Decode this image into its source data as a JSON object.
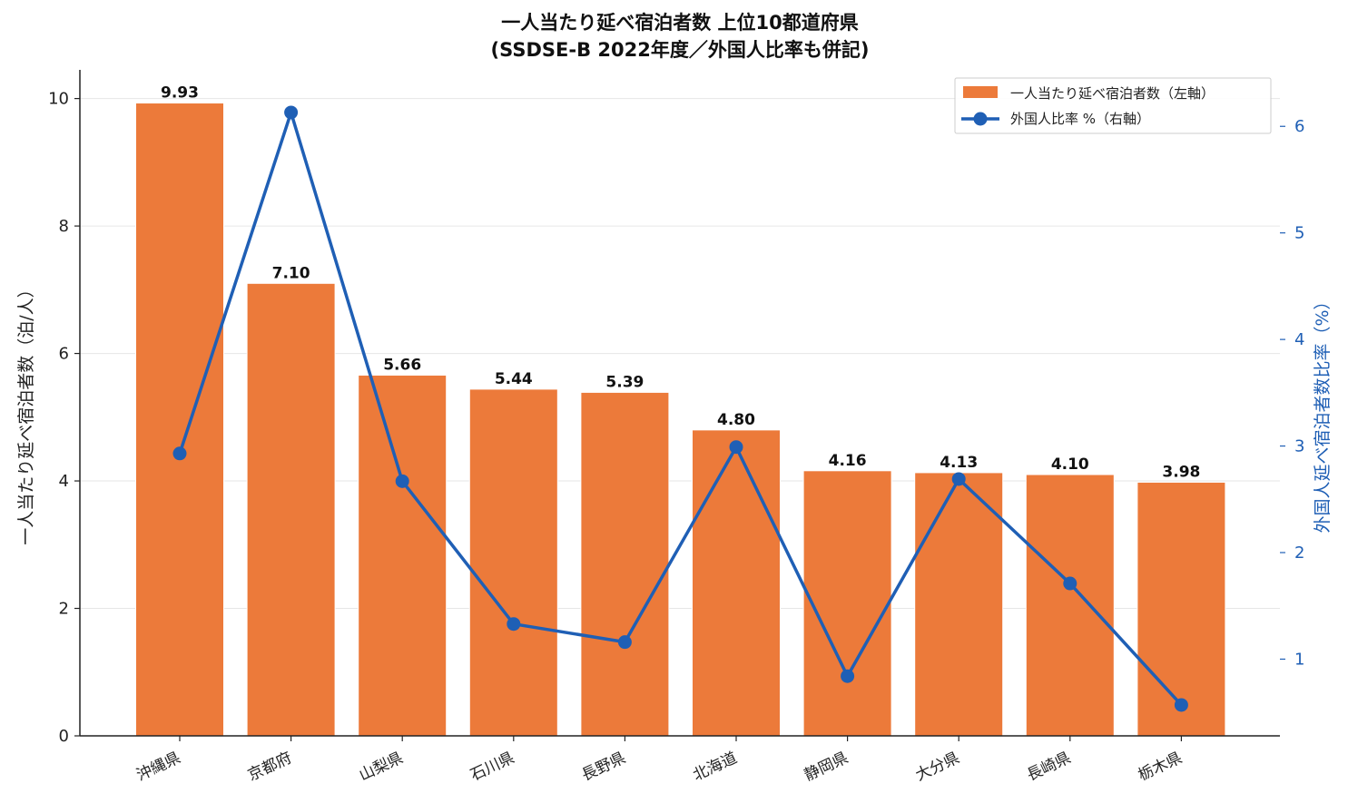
{
  "chart_data": {
    "type": "bar",
    "title": "一人当たり延べ宿泊者数 上位10都道府県",
    "subtitle": "(SSDSE-B 2022年度／外国人比率も併記)",
    "categories": [
      "沖縄県",
      "京都府",
      "山梨県",
      "石川県",
      "長野県",
      "北海道",
      "静岡県",
      "大分県",
      "長崎県",
      "栃木県"
    ],
    "series": [
      {
        "name": "一人当たり延べ宿泊者数（左軸）",
        "axis": "left",
        "type": "bar",
        "color": "#ec7a3a",
        "values": [
          9.93,
          7.1,
          5.66,
          5.44,
          5.39,
          4.8,
          4.16,
          4.13,
          4.1,
          3.98
        ],
        "labels": [
          "9.93",
          "7.10",
          "5.66",
          "5.44",
          "5.39",
          "4.80",
          "4.16",
          "4.13",
          "4.10",
          "3.98"
        ]
      },
      {
        "name": "外国人比率 %（右軸）",
        "axis": "right",
        "type": "line",
        "color": "#1f5fb5",
        "values": [
          2.93,
          6.13,
          2.67,
          1.33,
          1.16,
          2.99,
          0.84,
          2.69,
          1.71,
          0.57
        ]
      }
    ],
    "ylabel": "一人当たり延べ宿泊者数（泊/人）",
    "ylabel_right": "外国人延べ宿泊者数比率（%）",
    "ylim": [
      0,
      10.45
    ],
    "ylim_right": [
      0.28,
      6.53
    ],
    "yticks": [
      0,
      2,
      4,
      6,
      8,
      10
    ],
    "yticks_right": [
      1,
      2,
      3,
      4,
      5,
      6
    ],
    "grid": "horizontal",
    "legend_position": "top-right"
  }
}
